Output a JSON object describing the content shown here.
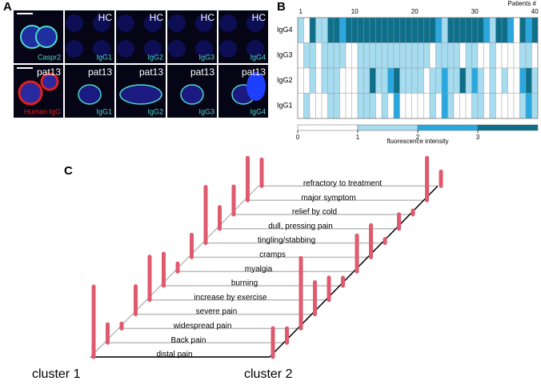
{
  "panel_labels": [
    "A",
    "B",
    "C"
  ],
  "panel_a": {
    "rows": [
      [
        {
          "label": "Caspr2"
        },
        {
          "corner": "HC",
          "label": "IgG1"
        },
        {
          "corner": "HC",
          "label": "IgG2"
        },
        {
          "corner": "HC",
          "label": "IgG3"
        },
        {
          "corner": "HC",
          "label": "IgG4"
        }
      ],
      [
        {
          "corner": "pat13",
          "label": "Human IgG"
        },
        {
          "corner": "pat13",
          "label": "IgG1"
        },
        {
          "corner": "pat13",
          "label": "IgG2"
        },
        {
          "corner": "pat13",
          "label": "IgG3"
        },
        {
          "corner": "pat13",
          "label": "IgG4"
        }
      ]
    ]
  },
  "chart_data": [
    {
      "type": "heatmap",
      "x_title": "Patients #",
      "categories": [
        1,
        null,
        null,
        null,
        null,
        null,
        null,
        null,
        null,
        10,
        null,
        null,
        null,
        null,
        null,
        null,
        null,
        null,
        null,
        20,
        null,
        null,
        null,
        null,
        null,
        null,
        null,
        null,
        null,
        30,
        null,
        null,
        null,
        null,
        null,
        null,
        null,
        null,
        null,
        40
      ],
      "series": [
        {
          "name": "IgG4",
          "values": [
            1,
            0,
            3,
            1,
            1,
            3,
            3,
            2,
            3,
            3,
            3,
            3,
            3,
            3,
            3,
            3,
            3,
            3,
            3,
            3,
            3,
            3,
            3,
            2,
            1,
            3,
            3,
            3,
            3,
            3,
            3,
            2,
            1,
            3,
            3,
            2,
            0,
            3,
            2,
            3
          ]
        },
        {
          "name": "IgG3",
          "values": [
            0,
            1,
            1,
            0,
            1,
            1,
            1,
            1,
            0,
            0,
            1,
            1,
            1,
            1,
            1,
            1,
            1,
            1,
            1,
            1,
            1,
            1,
            0,
            1,
            1,
            1,
            1,
            0,
            1,
            1,
            0,
            0,
            1,
            0,
            0,
            0,
            0,
            1,
            1,
            0
          ]
        },
        {
          "name": "IgG2",
          "values": [
            0,
            0,
            1,
            0,
            1,
            1,
            1,
            0,
            0,
            0,
            1,
            1,
            3,
            1,
            1,
            2,
            3,
            1,
            1,
            1,
            1,
            0,
            1,
            1,
            2,
            1,
            1,
            3,
            1,
            2,
            1,
            0,
            1,
            0,
            1,
            0,
            0,
            2,
            3,
            1
          ]
        },
        {
          "name": "IgG1",
          "values": [
            0,
            1,
            0,
            0,
            0,
            1,
            1,
            0,
            0,
            0,
            1,
            1,
            1,
            0,
            1,
            0,
            2,
            0,
            0,
            0,
            0,
            0,
            1,
            0,
            2,
            1,
            0,
            0,
            0,
            1,
            1,
            0,
            1,
            0,
            0,
            0,
            0,
            1,
            2,
            1
          ]
        }
      ],
      "colors": [
        "#ffffff",
        "#a6dcf0",
        "#29a8e0",
        "#0d6f8a"
      ],
      "colorbar_lim": [
        0,
        4
      ],
      "colorbar_ticks": [
        0,
        1,
        2,
        3
      ],
      "colorbar_title": "fluorescence intensity"
    },
    {
      "type": "bar3d",
      "color": "#e05a6e",
      "categories": [
        "distal pain",
        "Back pain",
        "widespread pain",
        "severe pain",
        "increase by exercise",
        "burning",
        "myalgia",
        "cramps",
        "tingling/stabbing",
        "dull, pressing pain",
        "relief by cold",
        "major symptom",
        "refractory to treatment"
      ],
      "series": [
        {
          "name": "cluster 1",
          "values": [
            88,
            23,
            6,
            35,
            54,
            40,
            10,
            28,
            70,
            27,
            35,
            53,
            33
          ]
        },
        {
          "name": "cluster 2",
          "values": [
            36,
            18,
            88,
            40,
            28,
            10,
            45,
            40,
            5,
            18,
            5,
            53,
            18
          ]
        }
      ]
    }
  ]
}
